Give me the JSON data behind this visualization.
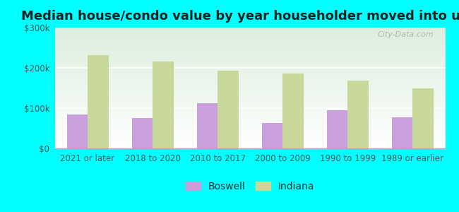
{
  "title": "Median house/condo value by year householder moved into unit",
  "categories": [
    "2021 or later",
    "2018 to 2020",
    "2010 to 2017",
    "2000 to 2009",
    "1990 to 1999",
    "1989 or earlier"
  ],
  "boswell_values": [
    85000,
    75000,
    112000,
    63000,
    95000,
    77000
  ],
  "indiana_values": [
    232000,
    215000,
    193000,
    186000,
    168000,
    150000
  ],
  "boswell_color": "#c9a0dc",
  "indiana_color": "#c8d89a",
  "background_color": "#00ffff",
  "ylim": [
    0,
    300000
  ],
  "yticks": [
    0,
    100000,
    200000,
    300000
  ],
  "ytick_labels": [
    "$0",
    "$100k",
    "$200k",
    "$300k"
  ],
  "title_fontsize": 13,
  "tick_fontsize": 8.5,
  "legend_fontsize": 10,
  "watermark": "City-Data.com"
}
